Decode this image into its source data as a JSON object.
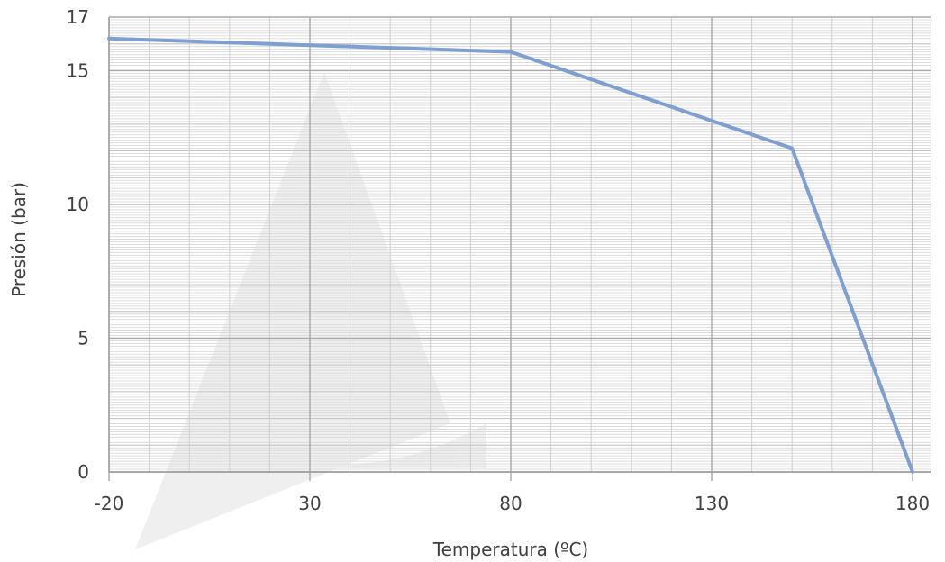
{
  "chart_data": {
    "type": "line",
    "title": "",
    "xlabel": "Temperatura (ºC)",
    "ylabel": "Presión (bar)",
    "xlim": [
      -20,
      180
    ],
    "ylim": [
      0,
      17
    ],
    "x_ticks": [
      -20,
      30,
      80,
      130,
      180
    ],
    "y_ticks": [
      0,
      5,
      10,
      15,
      17
    ],
    "grid": true,
    "legend": "none",
    "series": [
      {
        "color": "#7f9fcf",
        "x": [
          -20,
          80,
          150,
          180
        ],
        "y": [
          16.2,
          15.7,
          12.1,
          0
        ]
      }
    ]
  }
}
